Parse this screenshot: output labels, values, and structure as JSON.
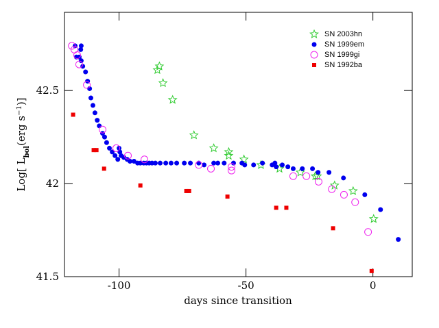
{
  "chart_data": {
    "type": "scatter",
    "x_label": "days since transition",
    "y_label_parts": [
      "Log[ L",
      "bol",
      "(erg s",
      "−1",
      ")]"
    ],
    "xlim": [
      -121.5,
      15.5
    ],
    "ylim": [
      41.5,
      42.92
    ],
    "xticks": [
      -100,
      -50,
      0
    ],
    "yticks": [
      41.5,
      42,
      42.5
    ],
    "legend": "upper-right",
    "series": [
      {
        "name": "SN 2003hn",
        "color": "#33cc33",
        "marker": "star",
        "x": [
          -84.9,
          -84.1,
          -82.7,
          -78.9,
          -70.5,
          -62.7,
          -56.8,
          -56.8,
          -50.8,
          -44.1,
          -36.8,
          -28.6,
          -22.7,
          -21.9,
          -15.1,
          -7.8,
          0.3
        ],
        "values": [
          42.61,
          42.63,
          42.54,
          42.45,
          42.26,
          42.19,
          42.17,
          42.15,
          42.13,
          42.1,
          42.08,
          42.06,
          42.04,
          42.04,
          41.99,
          41.96,
          41.81
        ]
      },
      {
        "name": "SN 1999em",
        "color": "#0000ee",
        "marker": "circle",
        "x": [
          -117.3,
          -114.9,
          -115.1,
          -116.8,
          -115.7,
          -114.9,
          -114.3,
          -113.2,
          -112.4,
          -111.6,
          -111.1,
          -110.3,
          -109.5,
          -108.6,
          -107.8,
          -106.5,
          -105.7,
          -104.9,
          -103.8,
          -102.7,
          -101.6,
          -100.5,
          -100.0,
          -99.7,
          -99.2,
          -98.1,
          -96.8,
          -95.7,
          -94.1,
          -92.7,
          -91.6,
          -90.3,
          -89.2,
          -88.1,
          -87.0,
          -85.7,
          -83.8,
          -81.6,
          -79.5,
          -77.3,
          -74.3,
          -71.9,
          -68.6,
          -66.5,
          -62.7,
          -61.1,
          -58.6,
          -54.9,
          -51.6,
          -50.5,
          -47.0,
          -43.5,
          -39.7,
          -38.6,
          -38.1,
          -35.7,
          -33.5,
          -31.4,
          -27.8,
          -23.8,
          -21.6,
          -17.3,
          -11.6,
          -3.2,
          3.0,
          10.0
        ],
        "values": [
          42.74,
          42.74,
          42.72,
          42.68,
          42.68,
          42.66,
          42.63,
          42.6,
          42.55,
          42.51,
          42.46,
          42.42,
          42.38,
          42.34,
          42.31,
          42.27,
          42.25,
          42.22,
          42.19,
          42.17,
          42.15,
          42.13,
          42.19,
          42.17,
          42.15,
          42.14,
          42.13,
          42.12,
          42.12,
          42.11,
          42.11,
          42.11,
          42.11,
          42.11,
          42.11,
          42.11,
          42.11,
          42.11,
          42.11,
          42.11,
          42.11,
          42.11,
          42.11,
          42.1,
          42.11,
          42.11,
          42.11,
          42.11,
          42.11,
          42.1,
          42.1,
          42.11,
          42.1,
          42.11,
          42.09,
          42.1,
          42.09,
          42.08,
          42.08,
          42.08,
          42.06,
          42.06,
          42.03,
          41.94,
          41.86,
          41.7
        ]
      },
      {
        "name": "SN 1999gi",
        "color": "#ee22ee",
        "marker": "open-circle",
        "x": [
          -118.6,
          -117.6,
          -116.5,
          -115.7,
          -112.7,
          -106.5,
          -101.1,
          -96.5,
          -90.0,
          -68.6,
          -63.8,
          -55.7,
          -55.7,
          -31.4,
          -26.2,
          -21.4,
          -16.2,
          -11.4,
          -7.0,
          -1.9
        ],
        "values": [
          42.74,
          42.72,
          42.69,
          42.64,
          42.53,
          42.29,
          42.19,
          42.15,
          42.13,
          42.1,
          42.08,
          42.09,
          42.07,
          42.04,
          42.04,
          42.01,
          41.97,
          41.94,
          41.9,
          41.74
        ]
      },
      {
        "name": "SN 1992ba",
        "color": "#ee0000",
        "marker": "square",
        "x": [
          -118.1,
          -110.0,
          -108.9,
          -105.9,
          -91.6,
          -73.5,
          -72.4,
          -57.3,
          -38.1,
          -34.1,
          -15.7,
          -0.5
        ],
        "values": [
          42.37,
          42.18,
          42.18,
          42.08,
          41.99,
          41.96,
          41.96,
          41.93,
          41.87,
          41.87,
          41.76,
          41.53
        ]
      }
    ]
  }
}
